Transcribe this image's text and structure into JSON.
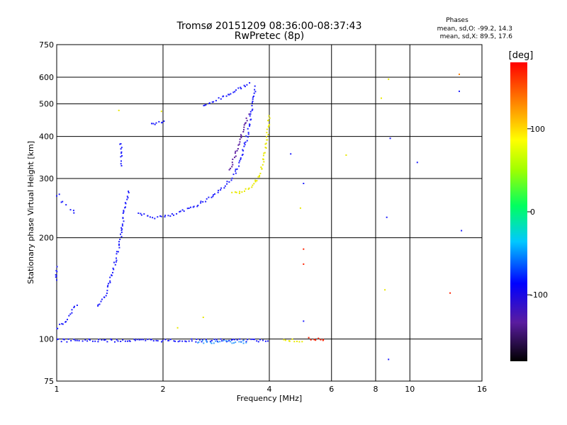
{
  "chart_data": {
    "type": "scatter",
    "title": "Tromsø 20151209 08:36:00-08:37:43",
    "subtitle": "RwPretec (8p)",
    "xlabel": "Frequency [MHz]",
    "ylabel": "Stationary phase Virtual Height [km]",
    "x_scale": "log",
    "y_scale": "log",
    "xlim": [
      1,
      16
    ],
    "ylim": [
      75,
      750
    ],
    "x_ticks": [
      1,
      2,
      4,
      6,
      8,
      10,
      16
    ],
    "y_ticks": [
      75,
      100,
      200,
      300,
      400,
      500,
      600,
      750
    ],
    "grid": true,
    "phase_stats": {
      "header": "Phases",
      "line1": "mean, sd,O: -99.2, 14.3",
      "line2": "mean, sd,X:  89.5, 17.6"
    },
    "colorbar": {
      "label": "[deg]",
      "range": [
        -180,
        180
      ],
      "ticks": [
        -100,
        0,
        100
      ]
    },
    "series": [
      {
        "color": "#2020ff",
        "phase": -100,
        "segments": [
          [
            [
              1.0,
              150
            ],
            [
              1.0,
              165
            ]
          ],
          [
            [
              1.0,
              265
            ],
            [
              1.03,
              270
            ]
          ],
          [
            [
              1.03,
              255
            ],
            [
              1.07,
              252
            ]
          ],
          [
            [
              1.1,
              242
            ],
            [
              1.13,
              235
            ]
          ],
          [
            [
              1.0,
              107
            ],
            [
              1.02,
              110
            ],
            [
              1.06,
              112
            ],
            [
              1.1,
              120
            ],
            [
              1.15,
              128
            ]
          ],
          [
            [
              1.3,
              125
            ],
            [
              1.36,
              132
            ],
            [
              1.42,
              150
            ],
            [
              1.48,
              175
            ],
            [
              1.52,
              200
            ],
            [
              1.56,
              245
            ],
            [
              1.6,
              280
            ]
          ],
          [
            [
              1.52,
              330
            ],
            [
              1.52,
              390
            ]
          ],
          [
            [
              1.7,
              235
            ],
            [
              1.9,
              230
            ],
            [
              2.1,
              232
            ],
            [
              2.4,
              245
            ],
            [
              2.7,
              262
            ],
            [
              3.0,
              285
            ],
            [
              3.2,
              310
            ],
            [
              3.35,
              350
            ],
            [
              3.5,
              420
            ],
            [
              3.6,
              500
            ],
            [
              3.65,
              570
            ]
          ],
          [
            [
              1.85,
              435
            ],
            [
              1.95,
              440
            ],
            [
              2.05,
              445
            ]
          ],
          [
            [
              2.6,
              490
            ],
            [
              2.9,
              520
            ],
            [
              3.2,
              545
            ],
            [
              3.55,
              580
            ]
          ],
          [
            [
              1.0,
              99
            ],
            [
              4.0,
              99
            ]
          ]
        ]
      },
      {
        "color": "#5a1ca0",
        "phase": -150,
        "segments": [
          [
            [
              3.1,
              320
            ],
            [
              3.2,
              350
            ],
            [
              3.3,
              390
            ],
            [
              3.4,
              430
            ],
            [
              3.5,
              470
            ]
          ]
        ]
      },
      {
        "color": "#e8e800",
        "phase": 100,
        "segments": [
          [
            [
              3.15,
              270
            ],
            [
              3.4,
              275
            ],
            [
              3.6,
              285
            ],
            [
              3.75,
              305
            ],
            [
              3.85,
              340
            ],
            [
              3.95,
              400
            ],
            [
              4.0,
              470
            ]
          ],
          [
            [
              4.4,
              99
            ],
            [
              5.0,
              99
            ]
          ]
        ]
      },
      {
        "color": "#3aa0ff",
        "phase": -60,
        "segments": [
          [
            [
              2.5,
              98
            ],
            [
              3.5,
              98
            ]
          ]
        ]
      },
      {
        "color": "#ff2000",
        "phase": 170,
        "segments": [
          [
            [
              5.2,
              100
            ],
            [
              5.8,
              100
            ]
          ]
        ]
      }
    ],
    "isolated_points": [
      {
        "x": 8.7,
        "y": 592,
        "phase": 120
      },
      {
        "x": 8.8,
        "y": 395,
        "phase": -100
      },
      {
        "x": 8.6,
        "y": 230,
        "phase": -100
      },
      {
        "x": 8.5,
        "y": 140,
        "phase": 110
      },
      {
        "x": 8.7,
        "y": 87,
        "phase": -100
      },
      {
        "x": 13.8,
        "y": 612,
        "phase": 150
      },
      {
        "x": 13.8,
        "y": 545,
        "phase": -100
      },
      {
        "x": 14.0,
        "y": 210,
        "phase": -100
      },
      {
        "x": 13.0,
        "y": 137,
        "phase": 170
      },
      {
        "x": 4.6,
        "y": 355,
        "phase": -100
      },
      {
        "x": 5.0,
        "y": 290,
        "phase": -100
      },
      {
        "x": 4.9,
        "y": 245,
        "phase": 100
      },
      {
        "x": 5.0,
        "y": 185,
        "phase": 170
      },
      {
        "x": 5.0,
        "y": 167,
        "phase": 170
      },
      {
        "x": 5.0,
        "y": 113,
        "phase": -100
      },
      {
        "x": 8.3,
        "y": 520,
        "phase": 110
      },
      {
        "x": 10.5,
        "y": 335,
        "phase": -100
      },
      {
        "x": 6.6,
        "y": 352,
        "phase": 100
      },
      {
        "x": 1.5,
        "y": 478,
        "phase": 110
      },
      {
        "x": 1.98,
        "y": 475,
        "phase": 100
      },
      {
        "x": 2.2,
        "y": 108,
        "phase": 110
      },
      {
        "x": 2.6,
        "y": 116,
        "phase": 100
      }
    ]
  }
}
